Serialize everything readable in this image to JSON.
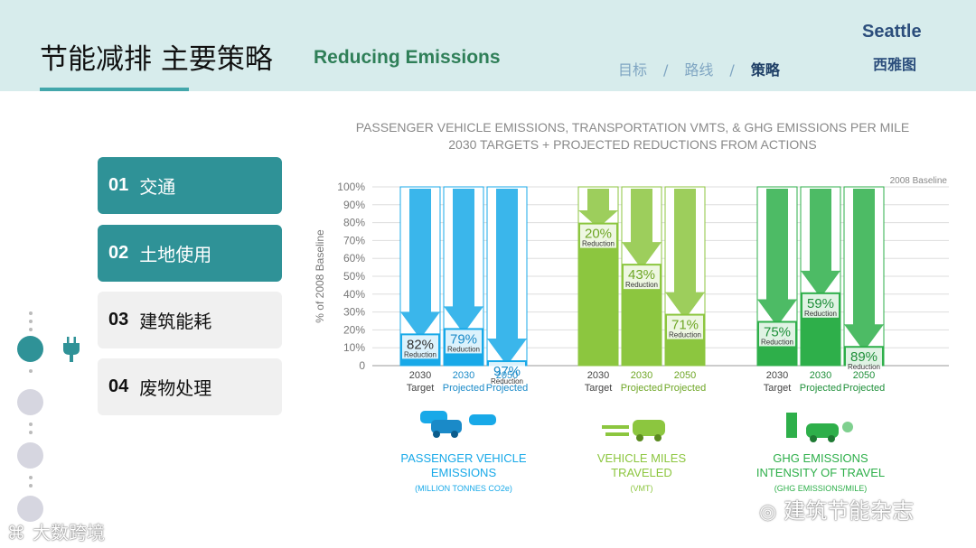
{
  "header": {
    "title_cn": "节能减排 主要策略",
    "title_en": "Reducing Emissions",
    "nav": [
      "目标",
      "路线",
      "策略"
    ],
    "nav_separator": "/",
    "nav_active_index": 2,
    "city_en": "Seattle",
    "city_cn": "西雅图"
  },
  "sidebar": {
    "items": [
      {
        "num": "01",
        "label": "交通",
        "active": true
      },
      {
        "num": "02",
        "label": "土地使用",
        "active": true
      },
      {
        "num": "03",
        "label": "建筑能耗",
        "active": false
      },
      {
        "num": "04",
        "label": "废物处理",
        "active": false
      }
    ],
    "icon": "plug-icon"
  },
  "colors": {
    "header_bg": "#d7ecec",
    "teal": "#2f9297",
    "blue": "#18a9e8",
    "light_green": "#8cc63f",
    "dark_green": "#2eaf4a"
  },
  "chart_data": {
    "type": "bar",
    "title": "PASSENGER VEHICLE EMISSIONS, TRANSPORTATION VMTS, & GHG EMISSIONS PER MILE",
    "subtitle": "2030 TARGETS + PROJECTED REDUCTIONS FROM ACTIONS",
    "ylabel": "% of 2008 Baseline",
    "ylim": [
      0,
      100
    ],
    "yticks": [
      "0",
      "10%",
      "20%",
      "30%",
      "40%",
      "50%",
      "60%",
      "70%",
      "80%",
      "90%",
      "100%"
    ],
    "baseline_label": "2008 Baseline",
    "reduction_word": "Reduction",
    "groups": [
      {
        "name": "PASSENGER VEHICLE EMISSIONS",
        "sub": "(MILLION TONNES CO2e)",
        "icon": "cars-icon",
        "color": "#18a9e8",
        "bars": [
          {
            "label1": "2030",
            "label2": "Target",
            "reduction": 82,
            "value": 18
          },
          {
            "label1": "2030",
            "label2": "Projected",
            "reduction": 79,
            "value": 21
          },
          {
            "label1": "2050",
            "label2": "Projected",
            "reduction": 97,
            "value": 3
          }
        ]
      },
      {
        "name": "VEHICLE MILES TRAVELED",
        "sub": "(VMT)",
        "icon": "car-speed-icon",
        "color": "#8cc63f",
        "bars": [
          {
            "label1": "2030",
            "label2": "Target",
            "reduction": 20,
            "value": 80
          },
          {
            "label1": "2030",
            "label2": "Projected",
            "reduction": 43,
            "value": 57
          },
          {
            "label1": "2050",
            "label2": "Projected",
            "reduction": 71,
            "value": 29
          }
        ]
      },
      {
        "name": "GHG EMISSIONS INTENSITY OF TRAVEL",
        "sub": "(GHG EMISSIONS/MILE)",
        "icon": "fuel-car-icon",
        "color": "#2eaf4a",
        "bars": [
          {
            "label1": "2030",
            "label2": "Target",
            "reduction": 75,
            "value": 25
          },
          {
            "label1": "2030",
            "label2": "Projected",
            "reduction": 59,
            "value": 41
          },
          {
            "label1": "2050",
            "label2": "Projected",
            "reduction": 89,
            "value": 11
          }
        ]
      }
    ]
  },
  "watermarks": {
    "right": "建筑节能杂志",
    "left": "大数跨境"
  }
}
